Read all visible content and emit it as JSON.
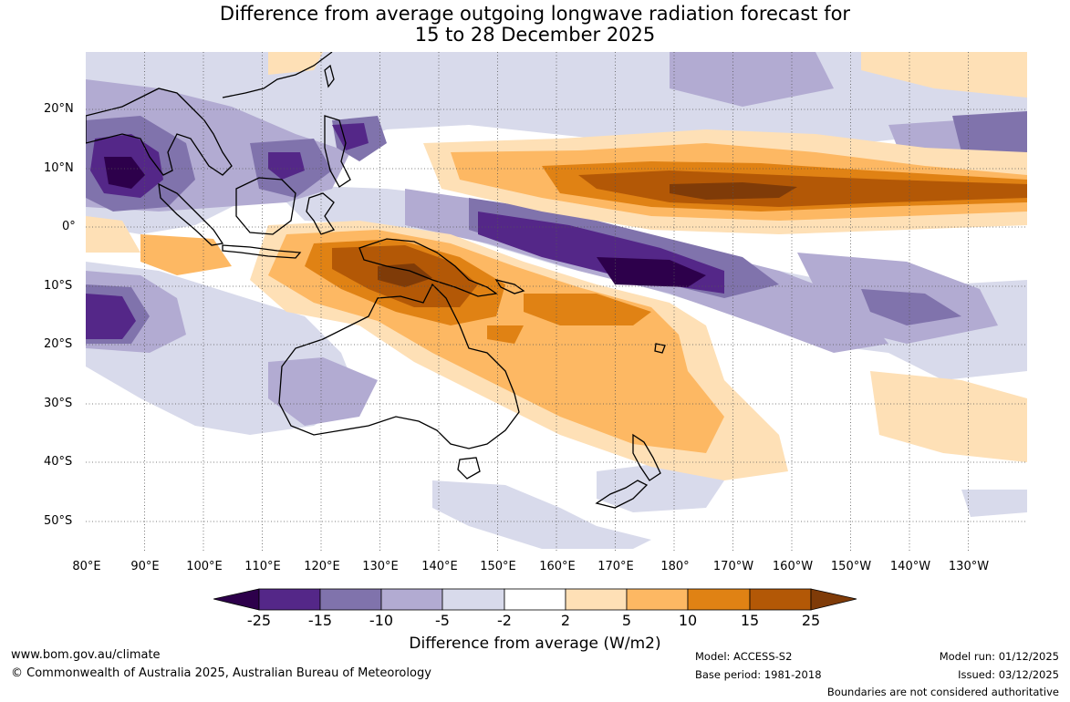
{
  "title": {
    "line1": "Difference from average outgoing longwave radiation forecast for",
    "line2": "15 to 28 December 2025"
  },
  "map": {
    "lat_labels": [
      "20°N",
      "10°N",
      "0°",
      "10°S",
      "20°S",
      "30°S",
      "40°S",
      "50°S"
    ],
    "lon_labels": [
      "80°E",
      "90°E",
      "100°E",
      "110°E",
      "120°E",
      "130°E",
      "140°E",
      "150°E",
      "160°E",
      "170°E",
      "180°",
      "170°W",
      "160°W",
      "150°W",
      "140°W",
      "130°W"
    ]
  },
  "colorbar": {
    "title": "Difference from average (W/m2)",
    "ticks": [
      "-25",
      "-15",
      "-10",
      "-5",
      "-2",
      "2",
      "5",
      "10",
      "15",
      "25"
    ],
    "colors": {
      "below": "#2d004b",
      "bins": [
        "#542788",
        "#8073ac",
        "#b2abd2",
        "#d8daeb",
        "#ffffff",
        "#fee0b6",
        "#fdb863",
        "#e08214",
        "#b35806"
      ],
      "above": "#7f3b08"
    }
  },
  "footer": {
    "url": "www.bom.gov.au/climate",
    "copyright": "© Commonwealth of Australia 2025, Australian Bureau of Meteorology",
    "model": "Model: ACCESS-S2",
    "base_period": "Base period: 1981-2018",
    "model_run": "Model run: 01/12/2025",
    "issued": "Issued: 03/12/2025",
    "disclaimer": "Boundaries are not considered authoritative"
  }
}
